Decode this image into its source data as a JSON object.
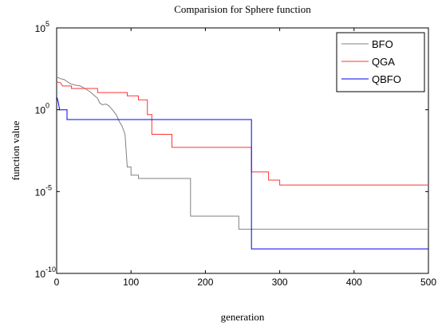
{
  "chart_data": {
    "type": "line",
    "title": "Comparision for Sphere function",
    "xlabel": "generation",
    "ylabel": "function value",
    "xlim": [
      0,
      500
    ],
    "ylim_log10": [
      -10,
      5
    ],
    "yscale": "log",
    "x_ticks": [
      "0",
      "100",
      "200",
      "300",
      "400",
      "500"
    ],
    "y_ticks": [
      {
        "base": "10",
        "exp": "-10",
        "log10": -10
      },
      {
        "base": "10",
        "exp": "-5",
        "log10": -5
      },
      {
        "base": "10",
        "exp": "0",
        "log10": 0
      },
      {
        "base": "10",
        "exp": "5",
        "log10": 5
      }
    ],
    "grid": false,
    "legend_position": "top-right",
    "series": [
      {
        "name": "BFO",
        "color": "#808080",
        "points_log10": [
          [
            0,
            2.0
          ],
          [
            5,
            1.9
          ],
          [
            10,
            1.85
          ],
          [
            18,
            1.6
          ],
          [
            25,
            1.5
          ],
          [
            32,
            1.45
          ],
          [
            38,
            1.3
          ],
          [
            45,
            1.1
          ],
          [
            50,
            0.9
          ],
          [
            55,
            0.7
          ],
          [
            58,
            0.4
          ],
          [
            62,
            0.3
          ],
          [
            66,
            0.35
          ],
          [
            70,
            0.25
          ],
          [
            75,
            0.0
          ],
          [
            80,
            -0.3
          ],
          [
            84,
            -0.7
          ],
          [
            88,
            -1.0
          ],
          [
            92,
            -1.5
          ],
          [
            95,
            -3.5
          ],
          [
            100,
            -3.5
          ],
          [
            100,
            -4.0
          ],
          [
            110,
            -4.0
          ],
          [
            110,
            -4.2
          ],
          [
            180,
            -4.2
          ],
          [
            180,
            -6.5
          ],
          [
            245,
            -6.5
          ],
          [
            245,
            -7.3
          ],
          [
            500,
            -7.3
          ]
        ]
      },
      {
        "name": "QGA",
        "color": "#ff3333",
        "points_log10": [
          [
            0,
            1.7
          ],
          [
            5,
            1.65
          ],
          [
            8,
            1.45
          ],
          [
            20,
            1.45
          ],
          [
            20,
            1.3
          ],
          [
            55,
            1.3
          ],
          [
            55,
            1.05
          ],
          [
            95,
            1.05
          ],
          [
            95,
            0.85
          ],
          [
            110,
            0.85
          ],
          [
            110,
            0.6
          ],
          [
            122,
            0.6
          ],
          [
            122,
            -0.3
          ],
          [
            128,
            -0.3
          ],
          [
            128,
            -1.5
          ],
          [
            155,
            -1.5
          ],
          [
            155,
            -2.3
          ],
          [
            262,
            -2.3
          ],
          [
            262,
            -3.8
          ],
          [
            285,
            -3.8
          ],
          [
            285,
            -4.3
          ],
          [
            300,
            -4.3
          ],
          [
            300,
            -4.6
          ],
          [
            500,
            -4.6
          ]
        ]
      },
      {
        "name": "QBFO",
        "color": "#0000ee",
        "points_log10": [
          [
            0,
            0.8
          ],
          [
            2,
            0.5
          ],
          [
            4,
            0.0
          ],
          [
            8,
            0.0
          ],
          [
            14,
            0.0
          ],
          [
            14,
            -0.6
          ],
          [
            262,
            -0.6
          ],
          [
            262,
            -8.5
          ],
          [
            500,
            -8.5
          ]
        ]
      }
    ]
  }
}
